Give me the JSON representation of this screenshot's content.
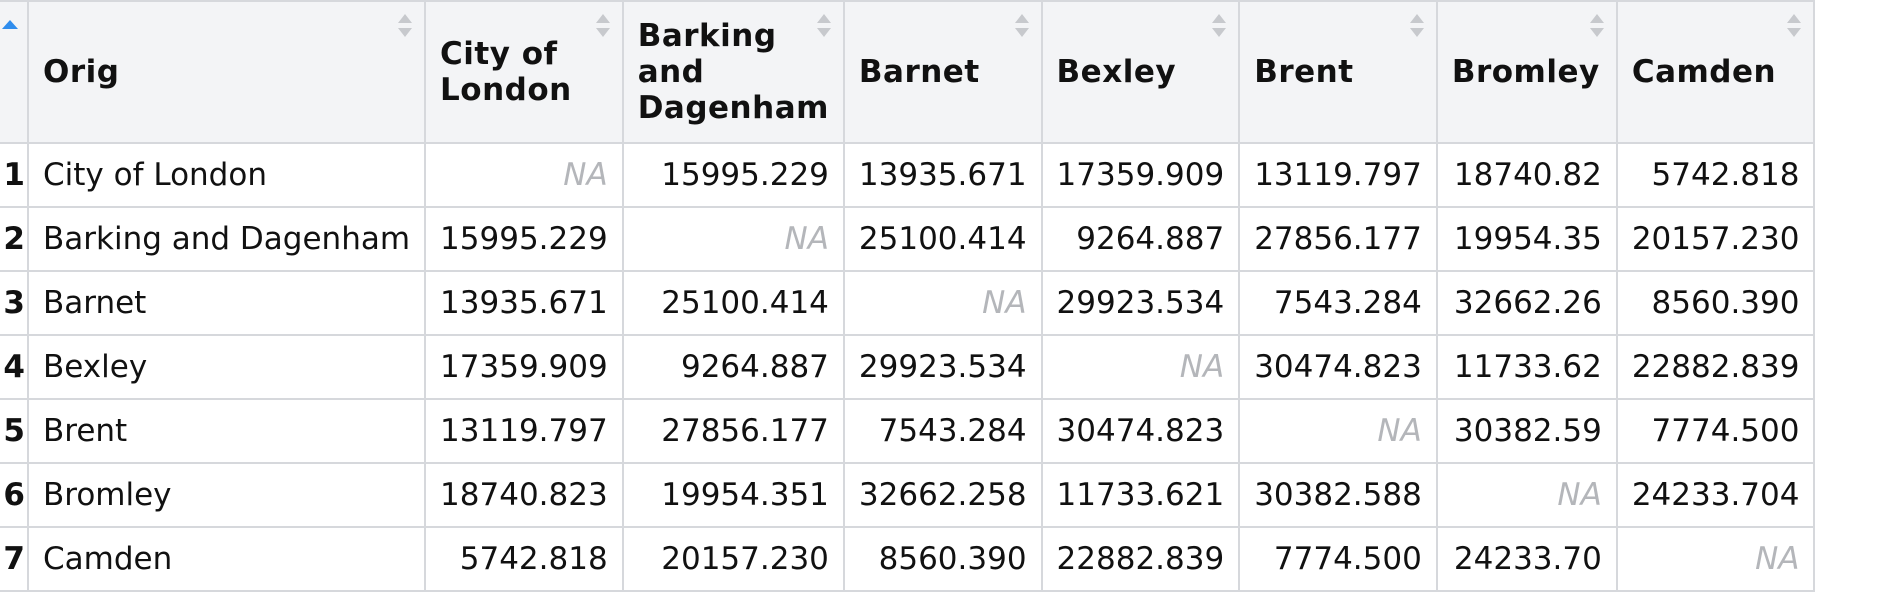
{
  "table": {
    "columns": [
      {
        "key": "orig",
        "label": "Orig"
      },
      {
        "key": "city_of_london",
        "label": "City of London"
      },
      {
        "key": "barking_and_dagenham",
        "label": "Barking and Dagenham"
      },
      {
        "key": "barnet",
        "label": "Barnet"
      },
      {
        "key": "bexley",
        "label": "Bexley"
      },
      {
        "key": "brent",
        "label": "Brent"
      },
      {
        "key": "bromley",
        "label": "Bromley"
      },
      {
        "key": "camden",
        "label": "Camden"
      }
    ],
    "rows": [
      {
        "index": "1",
        "orig": "City of London",
        "values": [
          "NA",
          "15995.229",
          "13935.671",
          "17359.909",
          "13119.797",
          "18740.82",
          "5742.818"
        ]
      },
      {
        "index": "2",
        "orig": "Barking and Dagenham",
        "values": [
          "15995.229",
          "NA",
          "25100.414",
          "9264.887",
          "27856.177",
          "19954.35",
          "20157.230"
        ]
      },
      {
        "index": "3",
        "orig": "Barnet",
        "values": [
          "13935.671",
          "25100.414",
          "NA",
          "29923.534",
          "7543.284",
          "32662.26",
          "8560.390"
        ]
      },
      {
        "index": "4",
        "orig": "Bexley",
        "values": [
          "17359.909",
          "9264.887",
          "29923.534",
          "NA",
          "30474.823",
          "11733.62",
          "22882.839"
        ]
      },
      {
        "index": "5",
        "orig": "Brent",
        "values": [
          "13119.797",
          "27856.177",
          "7543.284",
          "30474.823",
          "NA",
          "30382.59",
          "7774.500"
        ]
      },
      {
        "index": "6",
        "orig": "Bromley",
        "values": [
          "18740.823",
          "19954.351",
          "32662.258",
          "11733.621",
          "30382.588",
          "NA",
          "24233.704"
        ]
      },
      {
        "index": "7",
        "orig": "Camden",
        "values": [
          "5742.818",
          "20157.230",
          "8560.390",
          "22882.839",
          "7774.500",
          "24233.70",
          "NA"
        ]
      }
    ]
  },
  "icons": {
    "sort": "sort-arrows-icon",
    "sorted_ascending": "sort-ascending-icon"
  },
  "colors": {
    "header_bg": "#f3f4f6",
    "border": "#d6d8dc",
    "na_text": "#b4b6ba",
    "accent": "#2f8ded"
  }
}
